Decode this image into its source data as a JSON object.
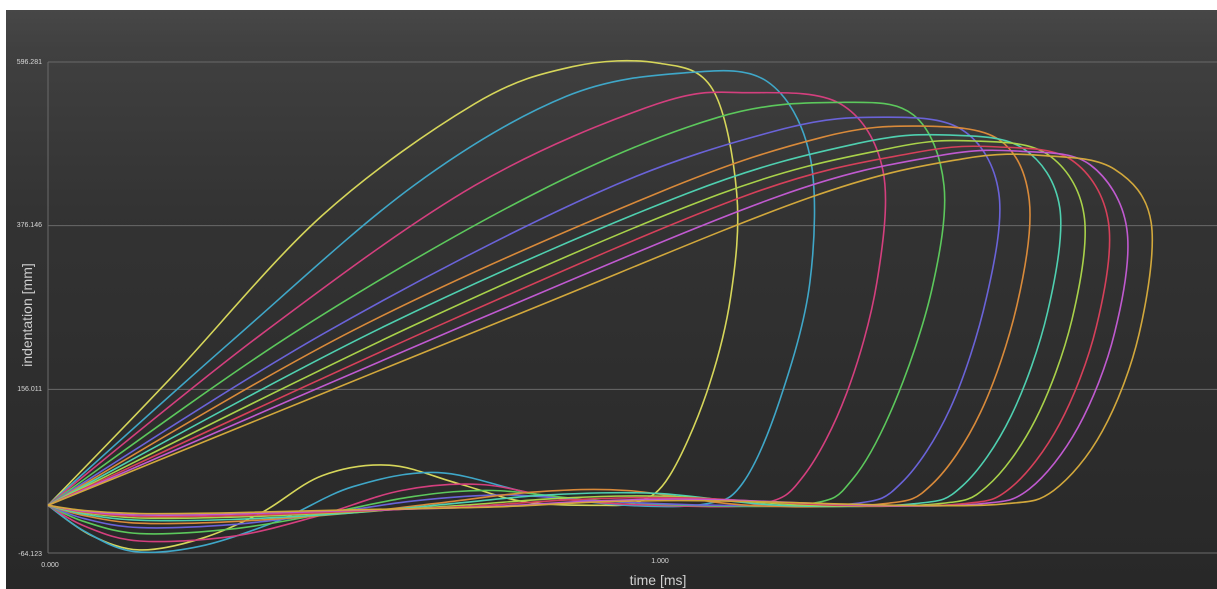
{
  "colors": {
    "panel_top": "#474747",
    "panel_bottom": "#282828",
    "gridline": "#6a6a6a",
    "text": "#d8d8d8"
  },
  "chart_data": {
    "type": "line",
    "title": "",
    "xlabel": "time [ms]",
    "ylabel": "indentation [mm]",
    "xlim": [
      0.0,
      1.81
    ],
    "ylim": [
      -64.123,
      596.281
    ],
    "grid": true,
    "legend": "none",
    "x_ticks": [
      "0.000",
      "1.000"
    ],
    "y_ticks": [
      "596.281",
      "376.146",
      "156.011",
      "-64.123"
    ],
    "series": [
      {
        "color": "#d6d65a",
        "values": [
          {
            "x": 0,
            "y": 0
          },
          {
            "x": 0.2,
            "y": 170
          },
          {
            "x": 0.45,
            "y": 390
          },
          {
            "x": 0.7,
            "y": 540
          },
          {
            "x": 0.86,
            "y": 590
          },
          {
            "x": 1.0,
            "y": 595
          },
          {
            "x": 1.09,
            "y": 560
          },
          {
            "x": 1.13,
            "y": 420
          },
          {
            "x": 1.12,
            "y": 280
          },
          {
            "x": 1.08,
            "y": 150
          },
          {
            "x": 1.02,
            "y": 40
          },
          {
            "x": 0.97,
            "y": 5
          },
          {
            "x": 0.9,
            "y": 0
          },
          {
            "x": 0.78,
            "y": 5
          },
          {
            "x": 0.67,
            "y": 30
          },
          {
            "x": 0.56,
            "y": 54
          },
          {
            "x": 0.45,
            "y": 40
          },
          {
            "x": 0.35,
            "y": -10
          },
          {
            "x": 0.25,
            "y": -45
          },
          {
            "x": 0.15,
            "y": -60
          },
          {
            "x": 0.07,
            "y": -40
          },
          {
            "x": 0,
            "y": 0
          }
        ]
      },
      {
        "color": "#3fa7c8",
        "values": [
          {
            "x": 0,
            "y": 0
          },
          {
            "x": 0.3,
            "y": 220
          },
          {
            "x": 0.6,
            "y": 430
          },
          {
            "x": 0.85,
            "y": 550
          },
          {
            "x": 1.05,
            "y": 582
          },
          {
            "x": 1.18,
            "y": 570
          },
          {
            "x": 1.25,
            "y": 470
          },
          {
            "x": 1.25,
            "y": 300
          },
          {
            "x": 1.2,
            "y": 140
          },
          {
            "x": 1.14,
            "y": 30
          },
          {
            "x": 1.08,
            "y": 2
          },
          {
            "x": 0.95,
            "y": 0
          },
          {
            "x": 0.8,
            "y": 15
          },
          {
            "x": 0.64,
            "y": 44
          },
          {
            "x": 0.5,
            "y": 25
          },
          {
            "x": 0.38,
            "y": -20
          },
          {
            "x": 0.25,
            "y": -55
          },
          {
            "x": 0.14,
            "y": -62
          },
          {
            "x": 0.06,
            "y": -35
          },
          {
            "x": 0,
            "y": 0
          }
        ]
      },
      {
        "color": "#d43f7e",
        "values": [
          {
            "x": 0,
            "y": 0
          },
          {
            "x": 0.35,
            "y": 230
          },
          {
            "x": 0.7,
            "y": 430
          },
          {
            "x": 1.0,
            "y": 540
          },
          {
            "x": 1.15,
            "y": 555
          },
          {
            "x": 1.3,
            "y": 540
          },
          {
            "x": 1.37,
            "y": 450
          },
          {
            "x": 1.36,
            "y": 300
          },
          {
            "x": 1.31,
            "y": 150
          },
          {
            "x": 1.24,
            "y": 40
          },
          {
            "x": 1.17,
            "y": 2
          },
          {
            "x": 1.0,
            "y": 0
          },
          {
            "x": 0.85,
            "y": 8
          },
          {
            "x": 0.71,
            "y": 28
          },
          {
            "x": 0.58,
            "y": 20
          },
          {
            "x": 0.44,
            "y": -15
          },
          {
            "x": 0.3,
            "y": -42
          },
          {
            "x": 0.15,
            "y": -48
          },
          {
            "x": 0.06,
            "y": -28
          },
          {
            "x": 0,
            "y": 0
          }
        ]
      },
      {
        "color": "#5cc85c",
        "values": [
          {
            "x": 0,
            "y": 0
          },
          {
            "x": 0.4,
            "y": 230
          },
          {
            "x": 0.8,
            "y": 420
          },
          {
            "x": 1.1,
            "y": 522
          },
          {
            "x": 1.3,
            "y": 542
          },
          {
            "x": 1.42,
            "y": 525
          },
          {
            "x": 1.47,
            "y": 430
          },
          {
            "x": 1.45,
            "y": 290
          },
          {
            "x": 1.39,
            "y": 140
          },
          {
            "x": 1.32,
            "y": 35
          },
          {
            "x": 1.25,
            "y": 2
          },
          {
            "x": 1.05,
            "y": 0
          },
          {
            "x": 0.88,
            "y": 8
          },
          {
            "x": 0.73,
            "y": 20
          },
          {
            "x": 0.6,
            "y": 12
          },
          {
            "x": 0.45,
            "y": -12
          },
          {
            "x": 0.3,
            "y": -32
          },
          {
            "x": 0.15,
            "y": -38
          },
          {
            "x": 0.06,
            "y": -22
          },
          {
            "x": 0,
            "y": 0
          }
        ]
      },
      {
        "color": "#6a63d8",
        "values": [
          {
            "x": 0,
            "y": 0
          },
          {
            "x": 0.45,
            "y": 230
          },
          {
            "x": 0.9,
            "y": 420
          },
          {
            "x": 1.2,
            "y": 505
          },
          {
            "x": 1.37,
            "y": 522
          },
          {
            "x": 1.5,
            "y": 505
          },
          {
            "x": 1.56,
            "y": 420
          },
          {
            "x": 1.54,
            "y": 280
          },
          {
            "x": 1.48,
            "y": 130
          },
          {
            "x": 1.4,
            "y": 30
          },
          {
            "x": 1.32,
            "y": 2
          },
          {
            "x": 1.1,
            "y": 0
          },
          {
            "x": 0.9,
            "y": 6
          },
          {
            "x": 0.75,
            "y": 14
          },
          {
            "x": 0.6,
            "y": 6
          },
          {
            "x": 0.45,
            "y": -12
          },
          {
            "x": 0.3,
            "y": -26
          },
          {
            "x": 0.15,
            "y": -30
          },
          {
            "x": 0.06,
            "y": -18
          },
          {
            "x": 0,
            "y": 0
          }
        ]
      },
      {
        "color": "#d98a3a",
        "values": [
          {
            "x": 0,
            "y": 0
          },
          {
            "x": 0.5,
            "y": 235
          },
          {
            "x": 1.0,
            "y": 420
          },
          {
            "x": 1.27,
            "y": 495
          },
          {
            "x": 1.43,
            "y": 510
          },
          {
            "x": 1.56,
            "y": 492
          },
          {
            "x": 1.61,
            "y": 410
          },
          {
            "x": 1.59,
            "y": 270
          },
          {
            "x": 1.53,
            "y": 125
          },
          {
            "x": 1.45,
            "y": 28
          },
          {
            "x": 1.37,
            "y": 2
          },
          {
            "x": 1.15,
            "y": 0
          },
          {
            "x": 0.95,
            "y": 20
          },
          {
            "x": 0.8,
            "y": 18
          },
          {
            "x": 0.65,
            "y": 4
          },
          {
            "x": 0.5,
            "y": -10
          },
          {
            "x": 0.3,
            "y": -22
          },
          {
            "x": 0.15,
            "y": -24
          },
          {
            "x": 0.06,
            "y": -14
          },
          {
            "x": 0,
            "y": 0
          }
        ]
      },
      {
        "color": "#4fd0b0",
        "values": [
          {
            "x": 0,
            "y": 0
          },
          {
            "x": 0.55,
            "y": 240
          },
          {
            "x": 1.05,
            "y": 420
          },
          {
            "x": 1.33,
            "y": 487
          },
          {
            "x": 1.48,
            "y": 498
          },
          {
            "x": 1.6,
            "y": 480
          },
          {
            "x": 1.66,
            "y": 400
          },
          {
            "x": 1.64,
            "y": 260
          },
          {
            "x": 1.58,
            "y": 120
          },
          {
            "x": 1.5,
            "y": 26
          },
          {
            "x": 1.42,
            "y": 2
          },
          {
            "x": 1.2,
            "y": 0
          },
          {
            "x": 1.0,
            "y": 16
          },
          {
            "x": 0.82,
            "y": 14
          },
          {
            "x": 0.66,
            "y": 2
          },
          {
            "x": 0.5,
            "y": -10
          },
          {
            "x": 0.3,
            "y": -19
          },
          {
            "x": 0.15,
            "y": -20
          },
          {
            "x": 0.06,
            "y": -12
          },
          {
            "x": 0,
            "y": 0
          }
        ]
      },
      {
        "color": "#a9d24a",
        "values": [
          {
            "x": 0,
            "y": 0
          },
          {
            "x": 0.6,
            "y": 242
          },
          {
            "x": 1.1,
            "y": 418
          },
          {
            "x": 1.38,
            "y": 480
          },
          {
            "x": 1.52,
            "y": 490
          },
          {
            "x": 1.64,
            "y": 472
          },
          {
            "x": 1.7,
            "y": 390
          },
          {
            "x": 1.68,
            "y": 250
          },
          {
            "x": 1.62,
            "y": 115
          },
          {
            "x": 1.54,
            "y": 25
          },
          {
            "x": 1.46,
            "y": 2
          },
          {
            "x": 1.25,
            "y": 0
          },
          {
            "x": 1.02,
            "y": 12
          },
          {
            "x": 0.85,
            "y": 10
          },
          {
            "x": 0.68,
            "y": 0
          },
          {
            "x": 0.5,
            "y": -9
          },
          {
            "x": 0.3,
            "y": -16
          },
          {
            "x": 0.15,
            "y": -17
          },
          {
            "x": 0.06,
            "y": -10
          },
          {
            "x": 0,
            "y": 0
          }
        ]
      },
      {
        "color": "#d6405a",
        "values": [
          {
            "x": 0,
            "y": 0
          },
          {
            "x": 0.65,
            "y": 245
          },
          {
            "x": 1.15,
            "y": 418
          },
          {
            "x": 1.42,
            "y": 474
          },
          {
            "x": 1.56,
            "y": 482
          },
          {
            "x": 1.68,
            "y": 464
          },
          {
            "x": 1.74,
            "y": 380
          },
          {
            "x": 1.72,
            "y": 240
          },
          {
            "x": 1.66,
            "y": 110
          },
          {
            "x": 1.58,
            "y": 24
          },
          {
            "x": 1.5,
            "y": 2
          },
          {
            "x": 1.3,
            "y": 0
          },
          {
            "x": 1.05,
            "y": 10
          },
          {
            "x": 0.87,
            "y": 8
          },
          {
            "x": 0.7,
            "y": -1
          },
          {
            "x": 0.5,
            "y": -8
          },
          {
            "x": 0.3,
            "y": -14
          },
          {
            "x": 0.15,
            "y": -15
          },
          {
            "x": 0.06,
            "y": -9
          },
          {
            "x": 0,
            "y": 0
          }
        ]
      },
      {
        "color": "#c05ad0",
        "values": [
          {
            "x": 0,
            "y": 0
          },
          {
            "x": 0.7,
            "y": 248
          },
          {
            "x": 1.2,
            "y": 416
          },
          {
            "x": 1.46,
            "y": 470
          },
          {
            "x": 1.6,
            "y": 476
          },
          {
            "x": 1.71,
            "y": 458
          },
          {
            "x": 1.77,
            "y": 372
          },
          {
            "x": 1.75,
            "y": 232
          },
          {
            "x": 1.69,
            "y": 105
          },
          {
            "x": 1.61,
            "y": 22
          },
          {
            "x": 1.53,
            "y": 2
          },
          {
            "x": 1.35,
            "y": 0
          },
          {
            "x": 1.08,
            "y": 8
          },
          {
            "x": 0.9,
            "y": 6
          },
          {
            "x": 0.72,
            "y": -2
          },
          {
            "x": 0.5,
            "y": -7
          },
          {
            "x": 0.3,
            "y": -12
          },
          {
            "x": 0.15,
            "y": -13
          },
          {
            "x": 0.06,
            "y": -8
          },
          {
            "x": 0,
            "y": 0
          }
        ]
      },
      {
        "color": "#d2a83c",
        "values": [
          {
            "x": 0,
            "y": 0
          },
          {
            "x": 0.75,
            "y": 250
          },
          {
            "x": 1.25,
            "y": 414
          },
          {
            "x": 1.5,
            "y": 466
          },
          {
            "x": 1.64,
            "y": 470
          },
          {
            "x": 1.75,
            "y": 452
          },
          {
            "x": 1.81,
            "y": 380
          },
          {
            "x": 1.79,
            "y": 230
          },
          {
            "x": 1.73,
            "y": 100
          },
          {
            "x": 1.65,
            "y": 20
          },
          {
            "x": 1.57,
            "y": 2
          },
          {
            "x": 1.4,
            "y": 0
          },
          {
            "x": 1.1,
            "y": 6
          },
          {
            "x": 0.92,
            "y": 5
          },
          {
            "x": 0.74,
            "y": -2
          },
          {
            "x": 0.5,
            "y": -6
          },
          {
            "x": 0.3,
            "y": -10
          },
          {
            "x": 0.15,
            "y": -11
          },
          {
            "x": 0.06,
            "y": -7
          },
          {
            "x": 0,
            "y": 0
          }
        ]
      }
    ]
  }
}
